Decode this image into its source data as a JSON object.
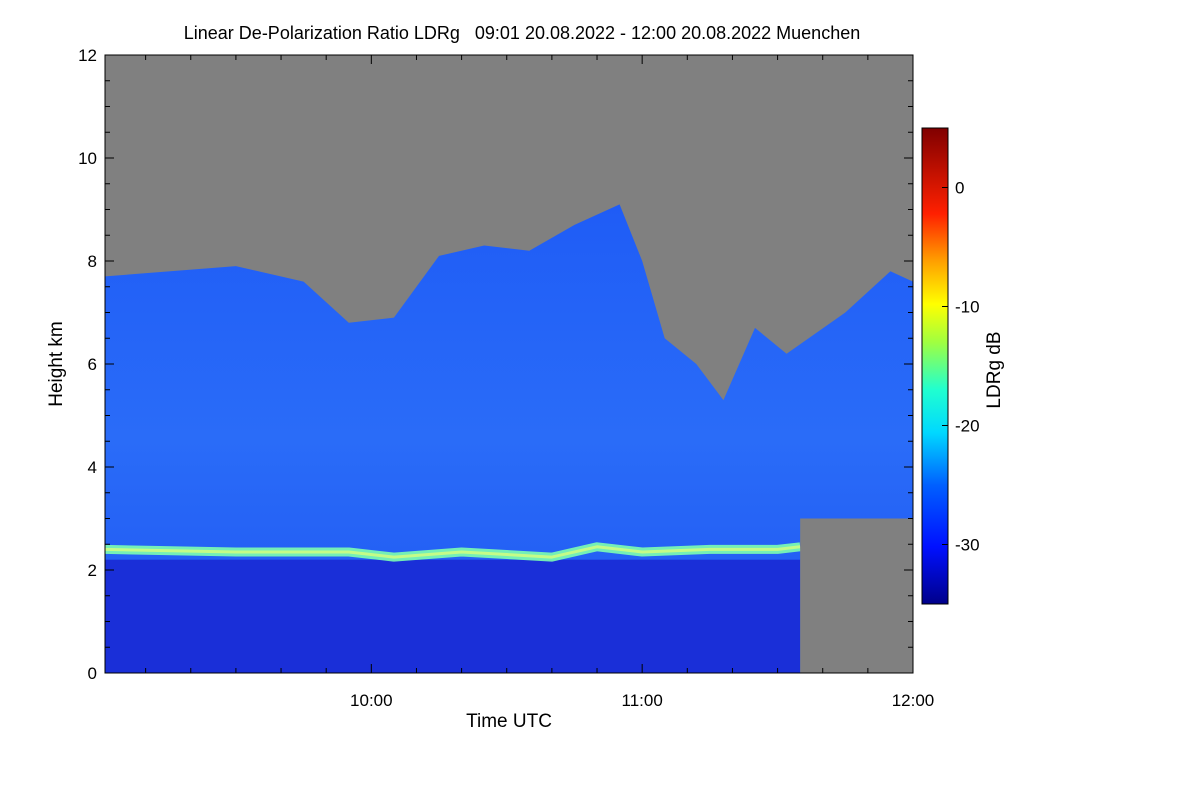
{
  "chart_data": {
    "type": "heatmap",
    "title": "Linear De-Polarization Ratio LDRg   09:01 20.08.2022 - 12:00 20.08.2022 Muenchen",
    "xlabel": "Time UTC",
    "ylabel": "Height km",
    "xlim": [
      "09:01",
      "12:00"
    ],
    "ylim": [
      0,
      12
    ],
    "x_major_ticks": [
      {
        "value": "10:00",
        "label": "10:00"
      },
      {
        "value": "11:00",
        "label": "11:00"
      },
      {
        "value": "12:00",
        "label": "12:00"
      }
    ],
    "x_minor_tick_step_minutes": 10,
    "y_ticks": [
      0,
      2,
      4,
      6,
      8,
      10,
      12
    ],
    "y_minor_tick_step_km": 0.5,
    "colorbar": {
      "label": "LDRg dB",
      "range": [
        -35,
        5
      ],
      "ticks": [
        0,
        -10,
        -20,
        -30
      ]
    },
    "no_data_color": "#808080",
    "features": {
      "cloud_top_km": [
        [
          "09:01",
          7.7
        ],
        [
          "09:30",
          7.9
        ],
        [
          "09:45",
          7.6
        ],
        [
          "09:55",
          6.8
        ],
        [
          "10:05",
          6.9
        ],
        [
          "10:15",
          8.1
        ],
        [
          "10:25",
          8.3
        ],
        [
          "10:35",
          8.2
        ],
        [
          "10:45",
          8.7
        ],
        [
          "10:55",
          9.1
        ],
        [
          "11:00",
          8.0
        ],
        [
          "11:05",
          6.5
        ],
        [
          "11:12",
          6.0
        ],
        [
          "11:18",
          5.3
        ],
        [
          "11:25",
          6.7
        ],
        [
          "11:32",
          6.2
        ],
        [
          "11:45",
          7.0
        ],
        [
          "11:55",
          7.8
        ],
        [
          "12:00",
          7.6
        ]
      ],
      "melting_layer_km": [
        [
          "09:01",
          2.4
        ],
        [
          "09:30",
          2.35
        ],
        [
          "09:55",
          2.35
        ],
        [
          "10:05",
          2.25
        ],
        [
          "10:20",
          2.35
        ],
        [
          "10:40",
          2.25
        ],
        [
          "10:50",
          2.45
        ],
        [
          "11:00",
          2.35
        ],
        [
          "11:15",
          2.4
        ],
        [
          "11:30",
          2.4
        ],
        [
          "11:35",
          2.45
        ]
      ]
    }
  }
}
